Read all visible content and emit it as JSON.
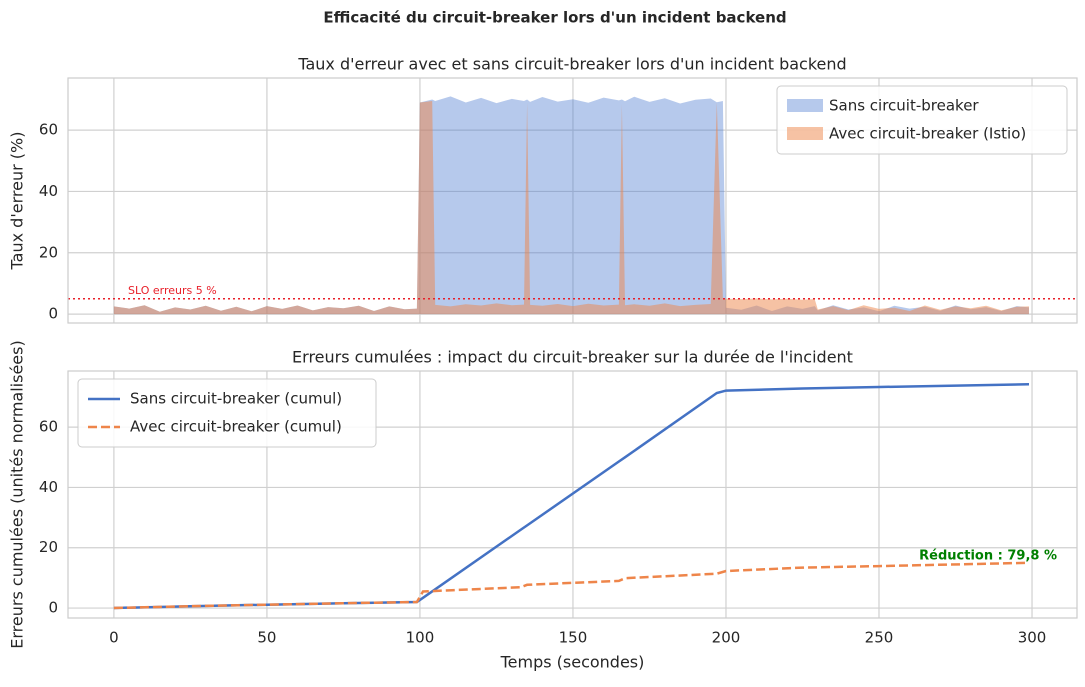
{
  "title": "Efficacité du circuit-breaker lors d'un incident backend",
  "chart_data": [
    {
      "type": "area",
      "title": "Taux d'erreur avec et sans circuit-breaker lors d'un incident backend",
      "ylabel": "Taux d'erreur (%)",
      "x": [
        0,
        5,
        10,
        15,
        20,
        25,
        30,
        35,
        40,
        45,
        50,
        55,
        60,
        65,
        70,
        75,
        80,
        85,
        90,
        95,
        99,
        100,
        104,
        105,
        110,
        115,
        120,
        125,
        130,
        134,
        135,
        136,
        140,
        145,
        150,
        155,
        160,
        165,
        166,
        167,
        170,
        175,
        180,
        185,
        190,
        195,
        197,
        199,
        200,
        205,
        210,
        215,
        220,
        225,
        229,
        230,
        235,
        240,
        245,
        250,
        255,
        260,
        265,
        270,
        275,
        280,
        285,
        290,
        295,
        299
      ],
      "series": [
        {
          "name": "Sans circuit-breaker",
          "color": "#4878d0",
          "opacity": 0.4,
          "values": [
            2.5,
            1.8,
            2.9,
            0.8,
            2.2,
            1.5,
            2.7,
            1.1,
            2.4,
            0.9,
            2.6,
            1.7,
            2.8,
            1.2,
            2.3,
            1.9,
            2.7,
            1.0,
            2.5,
            1.6,
            1.8,
            69,
            70,
            69.5,
            71,
            69,
            70.5,
            68.8,
            70.2,
            69.5,
            70,
            69.2,
            70.8,
            69.3,
            70.1,
            68.9,
            70.6,
            69.7,
            70,
            69.4,
            70.9,
            69.2,
            70.4,
            68.7,
            69.9,
            70.3,
            69.1,
            69.5,
            2.1,
            1.4,
            2.8,
            1.0,
            2.5,
            1.7,
            2.6,
            1.2,
            2.9,
            1.5,
            2.2,
            0.9,
            2.7,
            1.8,
            2.4,
            1.1,
            2.8,
            1.6,
            2.3,
            1.0,
            2.6,
            2.2
          ]
        },
        {
          "name": "Avec circuit-breaker (Istio)",
          "color": "#ee854a",
          "opacity": 0.5,
          "values": [
            2.5,
            1.8,
            2.9,
            0.8,
            2.2,
            1.5,
            2.7,
            1.1,
            2.4,
            0.9,
            2.6,
            1.7,
            2.8,
            1.2,
            2.3,
            1.9,
            2.7,
            1.0,
            2.5,
            1.6,
            1.8,
            69,
            69.5,
            3,
            2.5,
            3.2,
            2.8,
            3.5,
            2.9,
            3.1,
            69,
            3.0,
            2.7,
            3.3,
            2.6,
            3.4,
            2.8,
            3.1,
            68.5,
            2.9,
            3.2,
            2.7,
            3.5,
            2.6,
            3.0,
            3.3,
            69,
            4.8,
            5.0,
            4.9,
            5.1,
            4.8,
            5.0,
            4.7,
            4.9,
            1.5,
            2.6,
            1.3,
            2.9,
            1.7,
            2.1,
            1.0,
            2.8,
            1.4,
            2.5,
            1.9,
            2.7,
            1.2,
            2.4,
            2.5
          ]
        }
      ],
      "slo": {
        "value": 5,
        "label": "SLO erreurs 5 %",
        "color": "#e8202a"
      },
      "xlim": [
        -15,
        314.7
      ],
      "xticks": [
        0,
        50,
        100,
        150,
        200,
        250,
        300
      ],
      "xticklabels": false,
      "ylim": [
        -2.9,
        77
      ],
      "yticks": [
        0,
        20,
        40,
        60
      ],
      "grid": true,
      "legend": "upper right"
    },
    {
      "type": "line",
      "title": "Erreurs cumulées : impact du circuit-breaker sur la durée de l'incident",
      "xlabel": "Temps (secondes)",
      "ylabel": "Erreurs cumulées (unités normalisées)",
      "x": [
        0,
        25,
        50,
        75,
        99,
        101,
        133,
        135,
        165,
        167,
        197,
        200,
        225,
        250,
        299
      ],
      "series": [
        {
          "name": "Sans circuit-breaker (cumul)",
          "color": "#4472c4",
          "linestyle": "solid",
          "values": [
            0,
            0.6,
            1.1,
            1.6,
            2.0,
            3.4,
            26.0,
            27.4,
            48.6,
            50.0,
            71.3,
            72.1,
            72.8,
            73.3,
            74.2
          ]
        },
        {
          "name": "Avec circuit-breaker (cumul)",
          "color": "#ee854a",
          "linestyle": "dashed",
          "values": [
            0,
            0.6,
            1.1,
            1.6,
            2.0,
            5.5,
            6.9,
            7.7,
            9.0,
            9.9,
            11.4,
            12.3,
            13.4,
            13.9,
            15.0
          ]
        }
      ],
      "annotation": {
        "text": "Réduction : 79,8 %",
        "color": "#008000"
      },
      "xlim": [
        -15,
        314.7
      ],
      "xticks": [
        0,
        50,
        100,
        150,
        200,
        250,
        300
      ],
      "xticklabels": true,
      "ylim": [
        -3.3,
        78.6
      ],
      "yticks": [
        0,
        20,
        40,
        60
      ],
      "grid": true,
      "legend": "upper left"
    }
  ]
}
